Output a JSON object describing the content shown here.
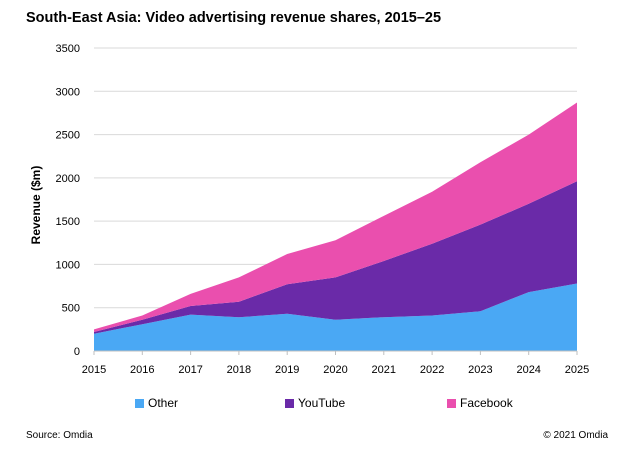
{
  "title": "South-East Asia: Video advertising revenue shares, 2015–25",
  "source": "Source: Omdia",
  "copyright": "© 2021 Omdia",
  "chart_data": {
    "type": "area",
    "stacked": true,
    "categories": [
      "2015",
      "2016",
      "2017",
      "2018",
      "2019",
      "2020",
      "2021",
      "2022",
      "2023",
      "2024",
      "2025"
    ],
    "ylabel": "Revenue ($m)",
    "xlabel": "",
    "ylim": [
      0,
      3500
    ],
    "yticks": [
      0,
      500,
      1000,
      1500,
      2000,
      2500,
      3000,
      3500
    ],
    "grid": true,
    "legend_position": "bottom",
    "series": [
      {
        "name": "Other",
        "color": "#4aa8f4",
        "values": [
          200,
          310,
          420,
          390,
          430,
          360,
          390,
          410,
          460,
          680,
          780
        ]
      },
      {
        "name": "YouTube",
        "color": "#6a2aa8",
        "values": [
          20,
          50,
          100,
          180,
          340,
          490,
          650,
          830,
          1000,
          1020,
          1180
        ]
      },
      {
        "name": "Facebook",
        "color": "#ea4fae",
        "values": [
          30,
          50,
          140,
          280,
          350,
          430,
          520,
          600,
          720,
          800,
          910
        ]
      }
    ]
  }
}
